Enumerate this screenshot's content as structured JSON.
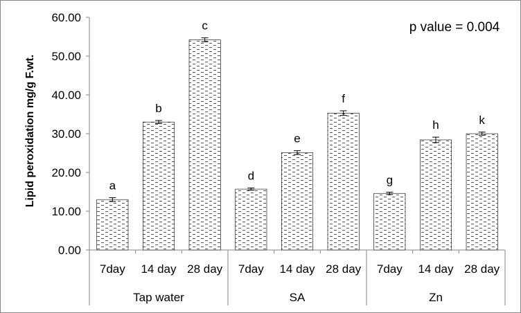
{
  "chart_data": {
    "type": "bar",
    "ylabel": "Lipid peroxidation mg/g F.wt.",
    "ylim": [
      0,
      60
    ],
    "yticks": [
      "0.00",
      "10.00",
      "20.00",
      "30.00",
      "40.00",
      "50.00",
      "60.00"
    ],
    "groups": [
      {
        "name": "Tap water",
        "categories": [
          "7day",
          "14 day",
          "28 day"
        ]
      },
      {
        "name": "SA",
        "categories": [
          "7day",
          "14 day",
          "28 day"
        ]
      },
      {
        "name": "Zn",
        "categories": [
          "7day",
          "14 day",
          "28 day"
        ]
      }
    ],
    "bars": [
      {
        "group": "Tap water",
        "category": "7day",
        "value": 13.0,
        "error": 0.5,
        "letter": "a"
      },
      {
        "group": "Tap water",
        "category": "14 day",
        "value": 33.0,
        "error": 0.4,
        "letter": "b"
      },
      {
        "group": "Tap water",
        "category": "28 day",
        "value": 54.2,
        "error": 0.5,
        "letter": "c"
      },
      {
        "group": "SA",
        "category": "7day",
        "value": 15.7,
        "error": 0.3,
        "letter": "d"
      },
      {
        "group": "SA",
        "category": "14 day",
        "value": 25.1,
        "error": 0.5,
        "letter": "e"
      },
      {
        "group": "SA",
        "category": "28 day",
        "value": 35.3,
        "error": 0.6,
        "letter": "f"
      },
      {
        "group": "Zn",
        "category": "7day",
        "value": 14.6,
        "error": 0.3,
        "letter": "g"
      },
      {
        "group": "Zn",
        "category": "14 day",
        "value": 28.4,
        "error": 0.7,
        "letter": "h"
      },
      {
        "group": "Zn",
        "category": "28 day",
        "value": 30.0,
        "error": 0.4,
        "letter": "k"
      }
    ],
    "annotation": "p value = 0.004",
    "grid": false,
    "legend": "none",
    "bar_fill": "dotted-dash pattern on white",
    "colors": {
      "bar_border": "#000000",
      "pattern": "#000000",
      "axis": "#868686"
    }
  }
}
